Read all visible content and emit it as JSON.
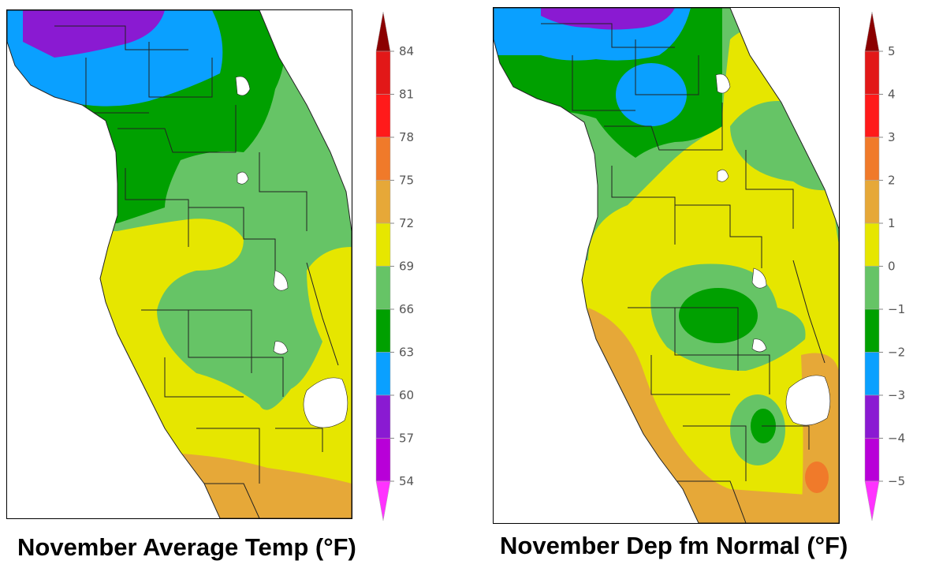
{
  "maps": [
    {
      "id": "avg-temp",
      "caption": "November Average Temp (°F)",
      "legend": {
        "labels": [
          "84",
          "81",
          "78",
          "75",
          "72",
          "69",
          "66",
          "63",
          "60",
          "57",
          "54"
        ],
        "colors": [
          "#c00000",
          "#e21818",
          "#ff1a1a",
          "#f07a2a",
          "#e6a838",
          "#e6e600",
          "#66c466",
          "#00a000",
          "#0aa0ff",
          "#8a1ad2",
          "#b800d8",
          "#ff33ff"
        ],
        "top_color": "#8b0000",
        "bottom_color": "#ff33ff"
      }
    },
    {
      "id": "dep-normal",
      "caption": "November Dep fm Normal (°F)",
      "legend": {
        "labels": [
          "5",
          "4",
          "3",
          "2",
          "1",
          "0",
          "−1",
          "−2",
          "−3",
          "−4",
          "−5"
        ],
        "colors": [
          "#c00000",
          "#e21818",
          "#ff1a1a",
          "#f07a2a",
          "#e6a838",
          "#e6e600",
          "#66c466",
          "#00a000",
          "#0aa0ff",
          "#8a1ad2",
          "#b800d8",
          "#ff33ff"
        ],
        "top_color": "#8b0000",
        "bottom_color": "#ff33ff"
      }
    }
  ],
  "palette": {
    "purple": "#8a1ad2",
    "blue": "#0aa0ff",
    "green_dark": "#00a000",
    "green_light": "#66c466",
    "yellow": "#e6e600",
    "orange_light": "#e6a838",
    "orange": "#f07a2a",
    "lake": "#ffffff"
  }
}
